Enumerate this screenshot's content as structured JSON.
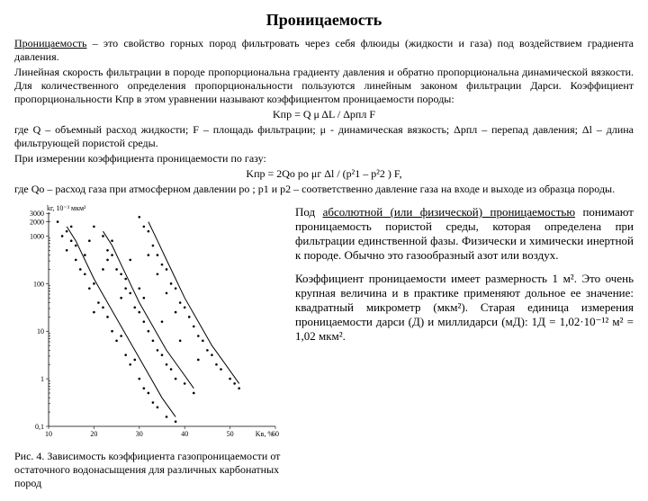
{
  "title": "Проницаемость",
  "intro": {
    "lead": "Проницаемость",
    "rest": " – это свойство горных пород фильтровать через себя флюиды (жидкости и газа) под воздействием градиента давления."
  },
  "p1": "Линейная скорость фильтрации в породе пропорциональна градиенту давления и обратно пропорциональна динамической вязкости. Для количественного определения пропорциональности пользуются линейным законом фильтрации Дарси. Коэффициент пропорциональности Kпр в этом уравнении называют коэффициентом проницаемости породы:",
  "eq1": "Kпр = Q μ ΔL / Δpпл F",
  "p2": "где Q – объемный расход жидкости; F – площадь фильтрации; μ - динамическая вязкость; Δpпл – перепад давления; Δl – длина фильтрующей пористой среды.",
  "p3": "При измерении коэффициента проницаемости по газу:",
  "eq2": "Kпр = 2Qо pо μг Δl / (p²1 – p²2 ) F,",
  "p4": "где Qо – расход газа при атмосферном давлении pо ; p1 и p2 – соответственно давление газа на входе и выходе из образца породы.",
  "side_p1a": "Под ",
  "side_p1b": "абсолютной (или физической) проницаемостью",
  "side_p1c": " понимают проницаемость пористой среды, которая определена при фильтрации единственной фазы. Физически и химически инертной к породе. Обычно это газообразный азот или воздух.",
  "side_p2": "Коэффициент проницаемости имеет размерность 1 м². Это очень крупная величина и в практике применяют дольное ее значение: квадратный микрометр (мкм²). Старая единица измерения проницаемости дарси (Д) и миллидарси (мД): 1Д = 1,02·10⁻¹² м² = 1,02 мкм².",
  "caption": "Рис. 4. Зависимость коэффициента газопроницаемости от остаточного водонасыщения для различных карбонатных пород",
  "chart": {
    "y_axis_title": "kг, 10⁻³ мкм²",
    "x_ticks": [
      10,
      20,
      30,
      40,
      50,
      60
    ],
    "x_range": [
      10,
      60
    ],
    "y_ticks": [
      0.1,
      1,
      10,
      100,
      1000,
      2000,
      3000
    ],
    "y_labels": [
      "0,1",
      "1",
      "10",
      "100",
      "1000",
      "2000",
      "3000"
    ],
    "y_range_log": [
      -1,
      3.5
    ],
    "bg": "#ffffff",
    "axis_color": "#000000",
    "curves": [
      [
        [
          14,
          3.2
        ],
        [
          16,
          2.9
        ],
        [
          18,
          2.5
        ],
        [
          20,
          2.1
        ],
        [
          23,
          1.6
        ],
        [
          26,
          1.1
        ],
        [
          29,
          0.6
        ],
        [
          32,
          0.1
        ],
        [
          35,
          -0.4
        ],
        [
          38,
          -0.8
        ]
      ],
      [
        [
          22,
          3.1
        ],
        [
          24,
          2.8
        ],
        [
          26,
          2.4
        ],
        [
          28,
          2.0
        ],
        [
          30,
          1.6
        ],
        [
          33,
          1.1
        ],
        [
          36,
          0.6
        ],
        [
          39,
          0.2
        ],
        [
          42,
          -0.2
        ]
      ],
      [
        [
          32,
          3.3
        ],
        [
          34,
          2.9
        ],
        [
          36,
          2.5
        ],
        [
          38,
          2.1
        ],
        [
          40,
          1.7
        ],
        [
          43,
          1.2
        ],
        [
          46,
          0.7
        ],
        [
          49,
          0.3
        ],
        [
          52,
          -0.1
        ]
      ]
    ],
    "scatter": [
      [
        12,
        3.3
      ],
      [
        13,
        3.0
      ],
      [
        14,
        3.1
      ],
      [
        15,
        2.9
      ],
      [
        14,
        2.7
      ],
      [
        16,
        2.5
      ],
      [
        17,
        2.3
      ],
      [
        16,
        2.8
      ],
      [
        18,
        2.2
      ],
      [
        19,
        1.9
      ],
      [
        20,
        2.0
      ],
      [
        21,
        1.6
      ],
      [
        20,
        1.4
      ],
      [
        22,
        1.5
      ],
      [
        23,
        1.3
      ],
      [
        24,
        1.0
      ],
      [
        25,
        0.8
      ],
      [
        26,
        0.9
      ],
      [
        27,
        0.5
      ],
      [
        28,
        0.3
      ],
      [
        29,
        0.4
      ],
      [
        30,
        0.0
      ],
      [
        31,
        -0.2
      ],
      [
        32,
        -0.3
      ],
      [
        33,
        -0.5
      ],
      [
        34,
        -0.6
      ],
      [
        36,
        -0.8
      ],
      [
        38,
        -0.9
      ],
      [
        20,
        3.2
      ],
      [
        22,
        3.0
      ],
      [
        23,
        2.7
      ],
      [
        24,
        2.6
      ],
      [
        25,
        2.3
      ],
      [
        26,
        2.2
      ],
      [
        27,
        1.9
      ],
      [
        28,
        1.8
      ],
      [
        29,
        1.5
      ],
      [
        30,
        1.4
      ],
      [
        31,
        1.2
      ],
      [
        32,
        1.0
      ],
      [
        33,
        0.8
      ],
      [
        34,
        0.6
      ],
      [
        35,
        0.5
      ],
      [
        36,
        0.3
      ],
      [
        37,
        0.2
      ],
      [
        38,
        0.0
      ],
      [
        40,
        -0.1
      ],
      [
        42,
        -0.3
      ],
      [
        30,
        3.4
      ],
      [
        31,
        3.2
      ],
      [
        32,
        3.1
      ],
      [
        33,
        2.8
      ],
      [
        34,
        2.6
      ],
      [
        35,
        2.4
      ],
      [
        36,
        2.3
      ],
      [
        37,
        2.0
      ],
      [
        38,
        1.9
      ],
      [
        39,
        1.6
      ],
      [
        40,
        1.5
      ],
      [
        41,
        1.3
      ],
      [
        42,
        1.1
      ],
      [
        43,
        0.9
      ],
      [
        44,
        0.8
      ],
      [
        45,
        0.6
      ],
      [
        46,
        0.5
      ],
      [
        48,
        0.2
      ],
      [
        50,
        0.0
      ],
      [
        52,
        -0.2
      ],
      [
        18,
        2.6
      ],
      [
        22,
        2.3
      ],
      [
        26,
        1.7
      ],
      [
        30,
        1.9
      ],
      [
        34,
        2.2
      ],
      [
        38,
        1.4
      ],
      [
        24,
        2.9
      ],
      [
        28,
        2.5
      ],
      [
        32,
        2.6
      ],
      [
        36,
        1.8
      ],
      [
        15,
        3.2
      ],
      [
        19,
        2.9
      ],
      [
        23,
        2.5
      ],
      [
        27,
        2.1
      ],
      [
        31,
        1.7
      ],
      [
        35,
        1.2
      ],
      [
        39,
        0.8
      ],
      [
        43,
        0.4
      ],
      [
        47,
        0.3
      ],
      [
        51,
        -0.1
      ]
    ]
  }
}
